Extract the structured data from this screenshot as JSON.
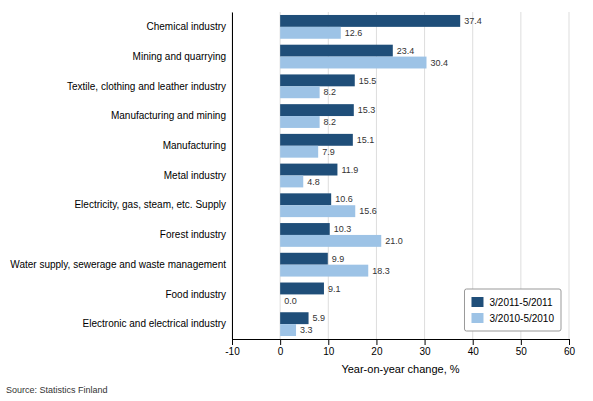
{
  "chart_data": {
    "type": "bar",
    "orientation": "horizontal",
    "categories": [
      "Chemical industry",
      "Mining and quarrying",
      "Textile, clothing and leather industry",
      "Manufacturing and mining",
      "Manufacturing",
      "Metal industry",
      "Electricity, gas, steam, etc. Supply",
      "Forest industry",
      "Water supply, sewerage and waste management",
      "Food industry",
      "Electronic and electrical industry"
    ],
    "series": [
      {
        "name": "3/2011-5/2011",
        "color": "#1f4e79",
        "values": [
          37.4,
          23.4,
          15.5,
          15.3,
          15.1,
          11.9,
          10.6,
          10.3,
          9.9,
          9.1,
          5.9
        ]
      },
      {
        "name": "3/2010-5/2010",
        "color": "#9dc3e6",
        "values": [
          12.6,
          30.4,
          8.2,
          8.2,
          7.9,
          4.8,
          15.6,
          21.0,
          18.3,
          0.0,
          3.3
        ],
        "value_labels": [
          "12.6",
          "30.4",
          "8.2",
          "8.2",
          "7.9",
          "4.8",
          "15.6",
          "21.0",
          "18.3",
          "0.0",
          "3.3"
        ]
      }
    ],
    "xlabel": "Year-on-year change, %",
    "xlim": [
      -10,
      60
    ],
    "xticks": [
      -10,
      0,
      10,
      20,
      30,
      40,
      50,
      60
    ],
    "grid": true,
    "legend": "lower right",
    "data_labels": true,
    "annotations": [
      "Source: Statistics Finland"
    ]
  }
}
